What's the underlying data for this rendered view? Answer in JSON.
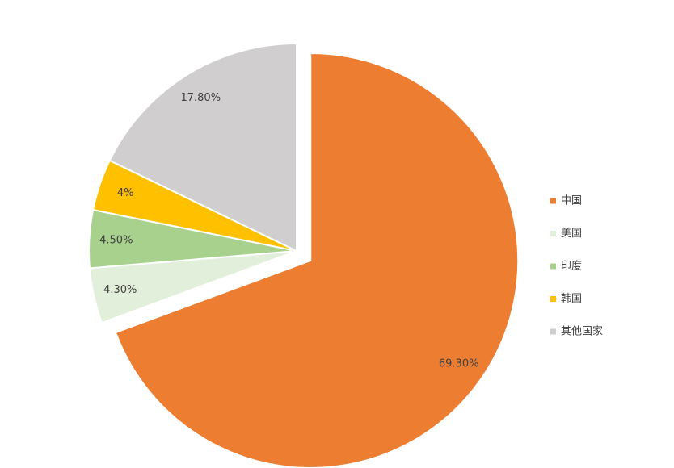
{
  "chart_data": {
    "type": "pie",
    "categories": [
      "中国",
      "美国",
      "印度",
      "韩国",
      "其他国家"
    ],
    "values": [
      69.3,
      4.3,
      4.5,
      4,
      17.8
    ],
    "value_labels": [
      "69.30%",
      "4.30%",
      "4.50%",
      "4%",
      "17.80%"
    ],
    "colors": [
      "#ed7d31",
      "#e2efda",
      "#a9d18e",
      "#ffc000",
      "#d0cece"
    ],
    "legend": "right"
  }
}
